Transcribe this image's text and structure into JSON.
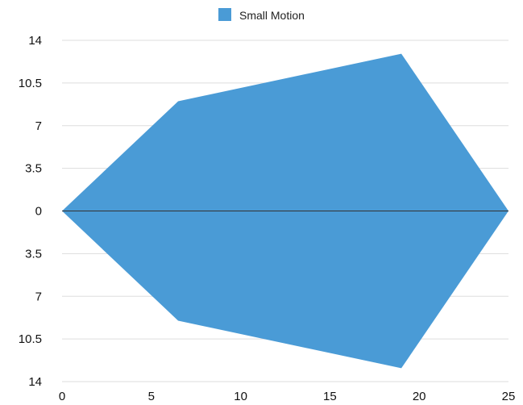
{
  "chart_data": {
    "type": "area",
    "legend": {
      "position": "top-center"
    },
    "series": [
      {
        "name": "Small Motion",
        "color": "#4a9bd6",
        "mirrored": true,
        "x": [
          0,
          6.5,
          19,
          25
        ],
        "values": [
          0,
          9,
          12.9,
          0
        ]
      }
    ],
    "x_ticks": [
      "0",
      "5",
      "10",
      "15",
      "20",
      "25"
    ],
    "y_ticks": [
      "14",
      "10.5",
      "7",
      "3.5",
      "0",
      "3.5",
      "7",
      "10.5",
      "14"
    ],
    "xlim": [
      0,
      25
    ],
    "ylim": [
      -14,
      14
    ],
    "grid": true,
    "zero_line_color": "#333333",
    "grid_color": "#dddddd"
  }
}
